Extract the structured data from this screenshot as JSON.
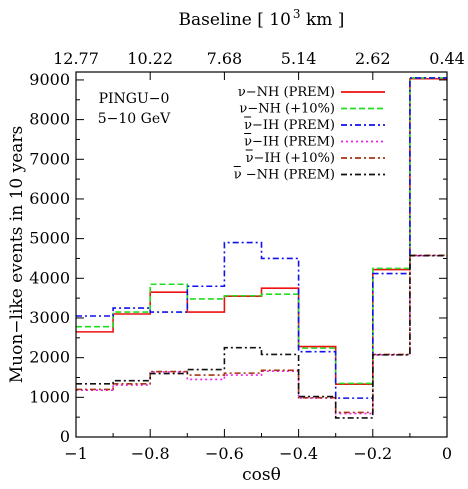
{
  "chart_data": {
    "type": "line",
    "style": "step",
    "xlabel": "cosθ",
    "ylabel": "Muon−like events in 10 years",
    "top_axis_label": "Baseline [ 10",
    "top_axis_label_sup": "3",
    "top_axis_label_end": " km ]",
    "xlim": [
      -1,
      0
    ],
    "ylim": [
      0,
      9200
    ],
    "x_ticks": [
      "−1",
      "−0.8",
      "−0.6",
      "−0.4",
      "−0.2",
      "0"
    ],
    "x_tick_values": [
      -1,
      -0.8,
      -0.6,
      -0.4,
      -0.2,
      0
    ],
    "y_ticks": [
      0,
      1000,
      2000,
      3000,
      4000,
      5000,
      6000,
      7000,
      8000,
      9000
    ],
    "top_ticks": [
      "12.77",
      "10.22",
      "7.68",
      "5.14",
      "2.62",
      "0.44"
    ],
    "top_tick_positions": [
      -1,
      -0.8,
      -0.6,
      -0.4,
      -0.2,
      0
    ],
    "annotation_line1": "PINGU−0",
    "annotation_line2": "5−10 GeV",
    "bin_edges": [
      -1,
      -0.9,
      -0.8,
      -0.7,
      -0.6,
      -0.5,
      -0.4,
      -0.3,
      -0.2,
      -0.1,
      0
    ],
    "legend_placement": "top-right",
    "series": [
      {
        "name": "ν−NH (PREM)",
        "color": "#ee1111",
        "dash": "solid",
        "values": [
          2650,
          3100,
          3650,
          3150,
          3550,
          3750,
          2280,
          1330,
          4220,
          9030
        ]
      },
      {
        "name": "ν−NH (+10%)",
        "color": "#22dd22",
        "dash": "dashed",
        "values": [
          2780,
          3150,
          3850,
          3480,
          3560,
          3600,
          2240,
          1350,
          4250,
          9050
        ]
      },
      {
        "name": "ν−IH (PREM)",
        "bar": true,
        "color": "#1111ee",
        "dash": "dashdot",
        "values": [
          3050,
          3250,
          3150,
          3800,
          4900,
          4500,
          2150,
          980,
          4120,
          9050
        ]
      },
      {
        "name": "ν−IH (PREM)",
        "bar": true,
        "color": "#ee22ee",
        "dash": "dotted",
        "values": [
          1180,
          1310,
          1640,
          1450,
          1560,
          1660,
          980,
          590,
          2070,
          4570
        ]
      },
      {
        "name": "ν−IH (+10%)",
        "bar": true,
        "color": "#aa3311",
        "dash": "dashdot",
        "values": [
          1200,
          1340,
          1650,
          1560,
          1610,
          1680,
          990,
          620,
          2080,
          4580
        ]
      },
      {
        "name": "ν −NH (PREM)",
        "bar": true,
        "color": "#111111",
        "dash": "dashdot",
        "values": [
          1340,
          1420,
          1600,
          1700,
          2250,
          2080,
          1020,
          480,
          2070,
          4570
        ]
      }
    ]
  }
}
